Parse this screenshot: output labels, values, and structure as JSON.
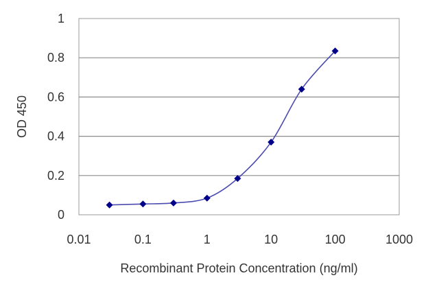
{
  "chart_data": {
    "type": "line",
    "title": "",
    "xlabel": "Recombinant Protein Concentration (ng/ml)",
    "ylabel": "OD 450",
    "x_scale": "log",
    "xlim": [
      0.01,
      1000
    ],
    "ylim": [
      0,
      1
    ],
    "x_ticks": [
      0.01,
      0.1,
      1,
      10,
      100,
      1000
    ],
    "x_tick_labels": [
      "0.01",
      "0.1",
      "1",
      "10",
      "100",
      "1000"
    ],
    "y_ticks": [
      0,
      0.2,
      0.4,
      0.6,
      0.8,
      1
    ],
    "y_tick_labels": [
      "0",
      "0.2",
      "0.4",
      "0.6",
      "0.8",
      "1"
    ],
    "grid": "horizontal",
    "legend": "none",
    "series": [
      {
        "x": [
          0.03,
          0.1,
          0.3,
          1,
          3,
          10,
          30,
          100
        ],
        "y": [
          0.05,
          0.055,
          0.06,
          0.085,
          0.185,
          0.37,
          0.64,
          0.835
        ],
        "color": "#00008b",
        "line_color": "#4a4ab0",
        "marker": "diamond"
      }
    ]
  }
}
